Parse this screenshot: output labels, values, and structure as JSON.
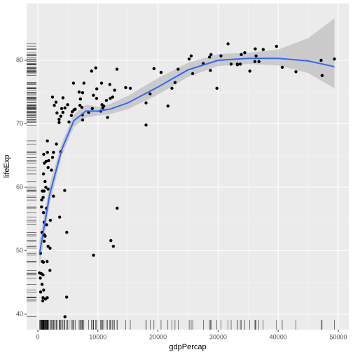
{
  "chart_data": {
    "type": "scatter",
    "x_label": "gdpPercap",
    "y_label": "lifeExp",
    "xlim": [
      -1865,
      51748
    ],
    "ylim": [
      37.57,
      88.95
    ],
    "xticks": [
      0,
      10000,
      20000,
      30000,
      40000,
      50000
    ],
    "yticks": [
      40,
      50,
      60,
      70,
      80
    ],
    "grid": true,
    "color": "#000000",
    "rug": true,
    "x": [
      975,
      5937,
      6223,
      4797,
      12779,
      34435,
      36126,
      29796,
      1391,
      33693,
      1441,
      3822,
      7446,
      12570,
      9066,
      10681,
      1217,
      430,
      1714,
      2042,
      36319,
      706,
      1704,
      13172,
      4959,
      7007,
      986,
      278,
      3633,
      9645,
      1545,
      14619,
      8948,
      22833,
      35278,
      2082,
      6025,
      6873,
      5581,
      5728,
      12154,
      641,
      691,
      33207,
      30470,
      13206,
      753,
      32170,
      1328,
      27538,
      5186,
      943,
      579,
      1202,
      3548,
      39725,
      18009,
      36181,
      2452,
      3541,
      11606,
      4471,
      40676,
      25523,
      28570,
      7321,
      31656,
      4519,
      1463,
      1593,
      23348,
      47307,
      10461,
      1569,
      415,
      12058,
      1045,
      759,
      12452,
      1043,
      1803,
      10957,
      11978,
      3096,
      9254,
      3820,
      824,
      944,
      4811,
      1091,
      36798,
      25185,
      2749,
      620,
      2014,
      49357,
      22316,
      2606,
      9809,
      4173,
      7409,
      3190,
      15390,
      20510,
      19329,
      7670,
      10808,
      863,
      1598,
      21655,
      1712,
      9787,
      863,
      47143,
      18678,
      25768,
      926,
      9270,
      28821,
      3970,
      2602,
      4513,
      33860,
      37506,
      4185,
      28718,
      1107,
      7458,
      883,
      18009,
      7093,
      8458,
      1056,
      33203,
      42952,
      10611,
      11416,
      2442,
      3025,
      2281,
      1271,
      470
    ],
    "values": [
      43.8,
      76.4,
      72.3,
      42.7,
      75.3,
      81.2,
      79.8,
      75.6,
      64.1,
      79.4,
      56.7,
      65.6,
      74.9,
      50.7,
      72.4,
      73.0,
      52.3,
      49.6,
      59.7,
      50.4,
      80.7,
      44.7,
      50.7,
      78.6,
      73.0,
      72.9,
      65.2,
      46.5,
      55.3,
      78.8,
      48.3,
      75.7,
      78.3,
      76.5,
      78.3,
      54.8,
      72.2,
      75.0,
      71.3,
      71.9,
      51.6,
      58.0,
      52.9,
      79.3,
      80.7,
      56.7,
      59.4,
      79.4,
      60.0,
      79.5,
      70.3,
      56.0,
      46.4,
      60.9,
      70.2,
      82.2,
      73.3,
      81.8,
      64.7,
      70.7,
      71.0,
      59.5,
      78.9,
      80.7,
      80.5,
      72.6,
      82.6,
      72.5,
      54.1,
      67.3,
      78.6,
      77.6,
      72.0,
      42.6,
      45.7,
      74.0,
      59.4,
      48.3,
      74.2,
      54.5,
      64.2,
      72.8,
      76.2,
      66.8,
      74.5,
      71.2,
      42.1,
      62.1,
      52.9,
      63.8,
      79.8,
      80.2,
      72.9,
      56.9,
      46.9,
      80.2,
      75.6,
      65.5,
      75.5,
      71.8,
      71.4,
      71.7,
      75.6,
      78.1,
      78.7,
      76.4,
      72.5,
      46.2,
      65.5,
      72.8,
      63.1,
      74.0,
      42.6,
      80.0,
      74.7,
      77.9,
      48.2,
      49.3,
      80.9,
      72.4,
      58.6,
      39.6,
      80.9,
      81.7,
      74.1,
      78.4,
      52.5,
      70.6,
      58.4,
      69.8,
      73.9,
      71.8,
      51.5,
      79.4,
      78.2,
      76.4,
      73.7,
      74.2,
      73.4,
      62.7,
      42.4,
      43.5
    ],
    "smooth": {
      "color": "#3366ff",
      "band_color": "#999999",
      "x": [
        277,
        2000,
        4000,
        6000,
        8000,
        10000,
        12000,
        15000,
        20000,
        25000,
        30000,
        35000,
        40000,
        45000,
        49357
      ],
      "values": [
        49.5,
        59,
        66,
        70.5,
        72,
        72,
        72.3,
        73.3,
        75.8,
        78.5,
        80,
        80.3,
        80.3,
        79.9,
        79.0
      ],
      "lower": [
        47.5,
        57.5,
        65,
        69.5,
        71,
        71.3,
        71.5,
        72.3,
        74.6,
        77.4,
        79.1,
        79.4,
        79.2,
        78,
        75.6
      ],
      "upper": [
        51.5,
        60.5,
        67,
        71.5,
        73,
        72.7,
        73.1,
        74.4,
        77.2,
        79.6,
        81,
        81.2,
        81.7,
        83.5,
        86.6
      ]
    }
  }
}
